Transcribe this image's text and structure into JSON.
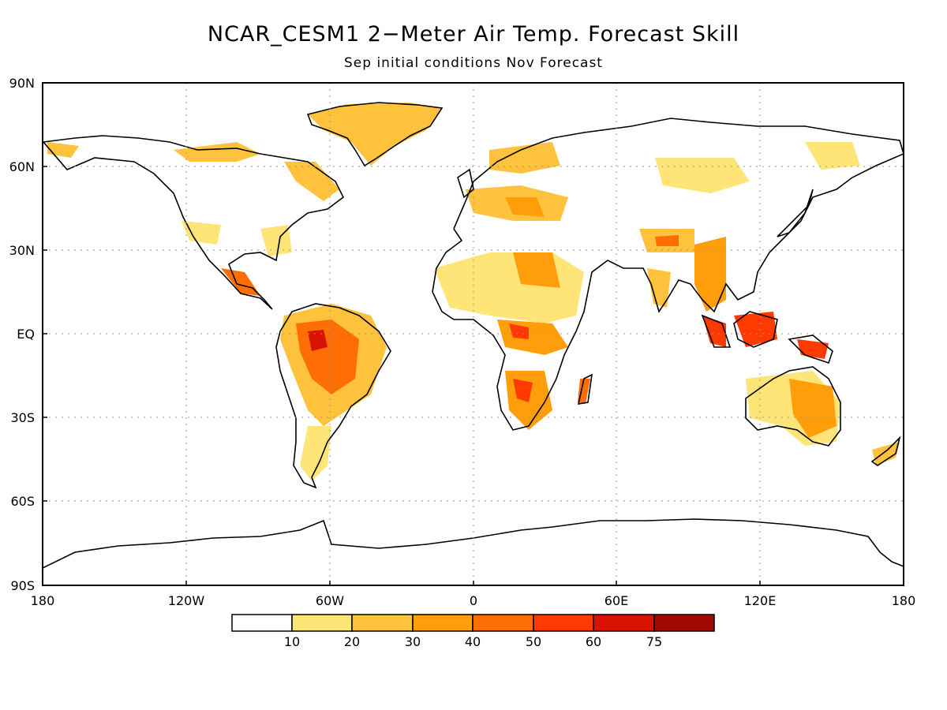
{
  "title": "NCAR_CESM1 2−Meter Air Temp. Forecast Skill",
  "subtitle": "Sep initial conditions   Nov Forecast",
  "lat_labels": [
    "90N",
    "60N",
    "30N",
    "EQ",
    "30S",
    "60S",
    "90S"
  ],
  "lon_labels": [
    "180",
    "120W",
    "60W",
    "0",
    "60E",
    "120E",
    "180"
  ],
  "legend": {
    "thresholds": [
      "10",
      "20",
      "30",
      "40",
      "50",
      "60",
      "75"
    ],
    "colors": [
      "#ffffff",
      "#ffe577",
      "#ffc23d",
      "#ff9e0a",
      "#ff6e05",
      "#ff3a00",
      "#d81400",
      "#a00a00"
    ]
  }
}
